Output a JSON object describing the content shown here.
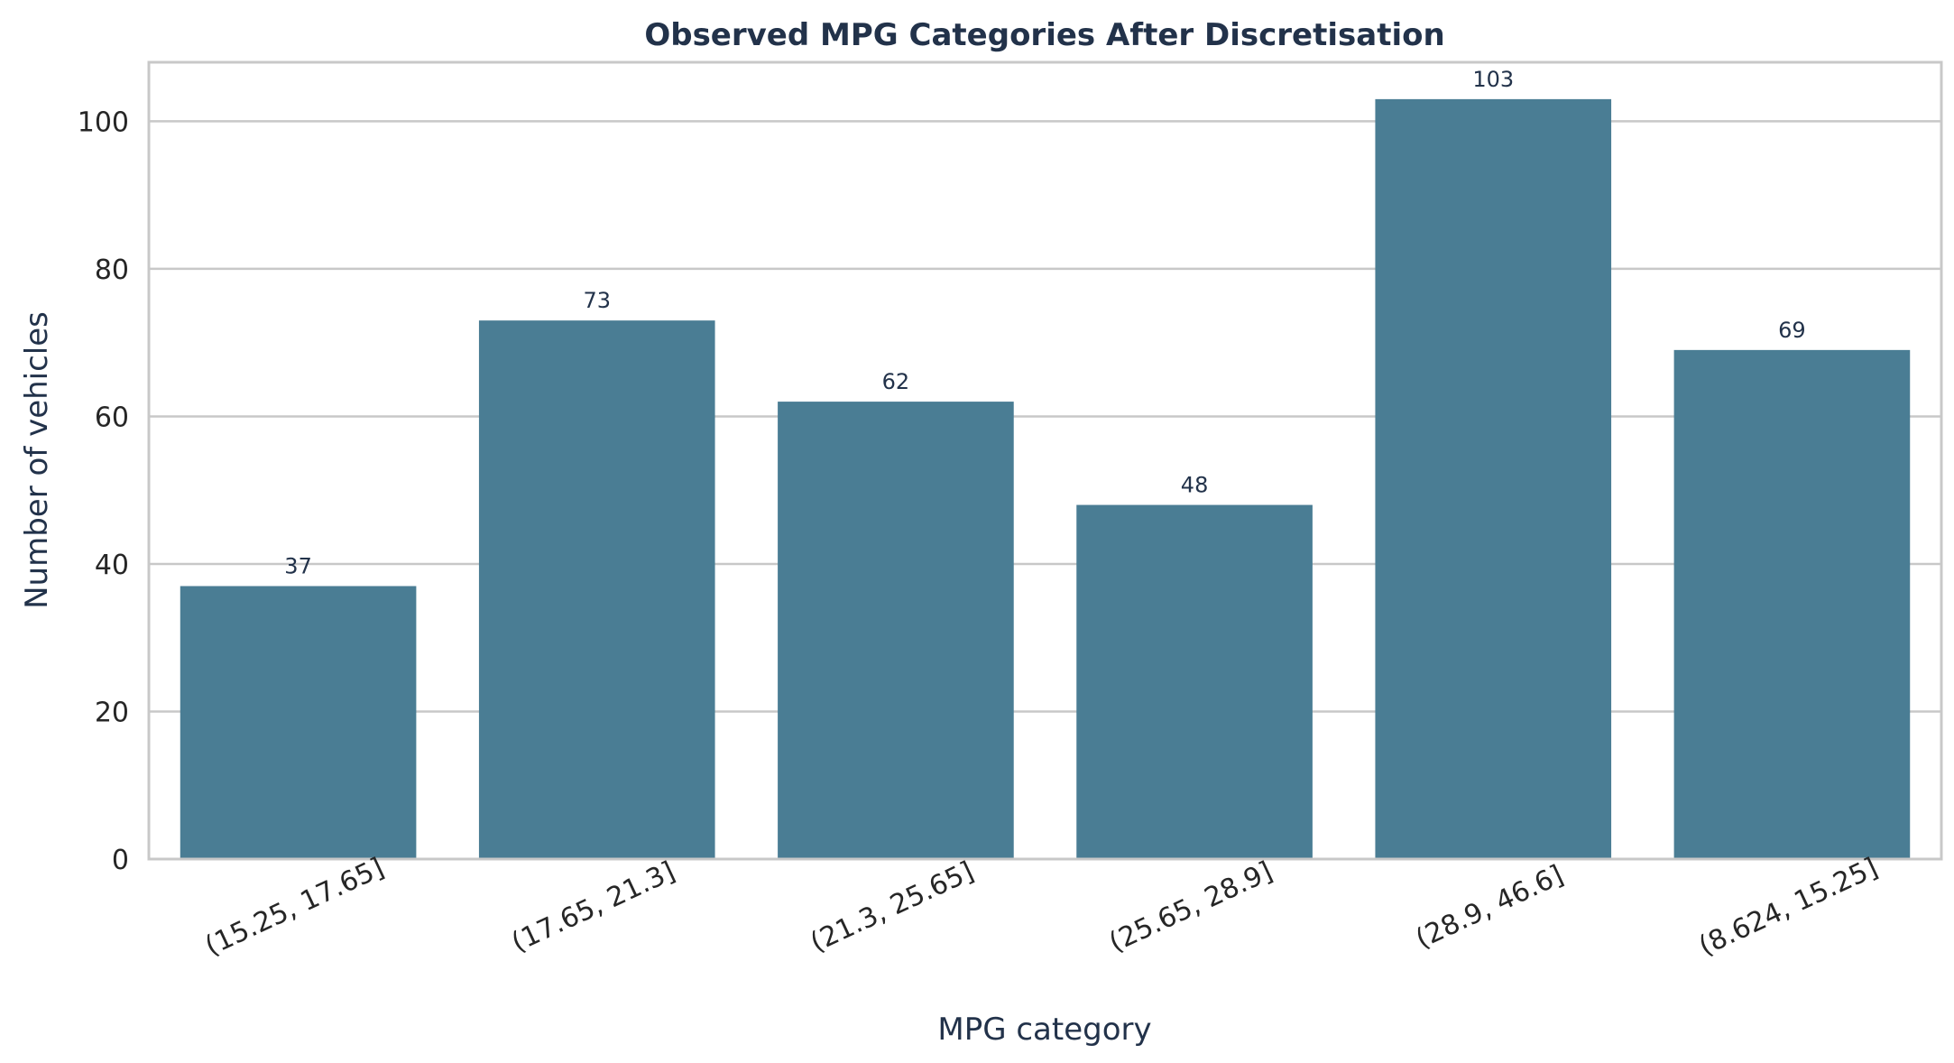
{
  "chart_data": {
    "type": "bar",
    "title": "Observed MPG Categories After Discretisation",
    "xlabel": "MPG category",
    "ylabel": "Number of vehicles",
    "categories": [
      "(15.25, 17.65]",
      "(17.65, 21.3]",
      "(21.3, 25.65]",
      "(25.65, 28.9]",
      "(28.9, 46.6]",
      "(8.624, 15.25]"
    ],
    "values": [
      37,
      73,
      62,
      48,
      103,
      69
    ],
    "data_labels": [
      "37",
      "73",
      "62",
      "48",
      "103",
      "69"
    ],
    "y_ticks": [
      0,
      20,
      40,
      60,
      80,
      100
    ],
    "y_tick_labels": [
      "0",
      "20",
      "40",
      "60",
      "80",
      "100"
    ],
    "ylim": [
      0,
      108
    ],
    "grid": "horizontal",
    "colors": {
      "bar": "#4a7d94",
      "grid": "#c8c8c8",
      "axes_frame": "#c8c8c8",
      "title": "#22324a",
      "axis_label": "#22324a",
      "tick_label": "#262626",
      "data_label": "#22324a"
    }
  }
}
